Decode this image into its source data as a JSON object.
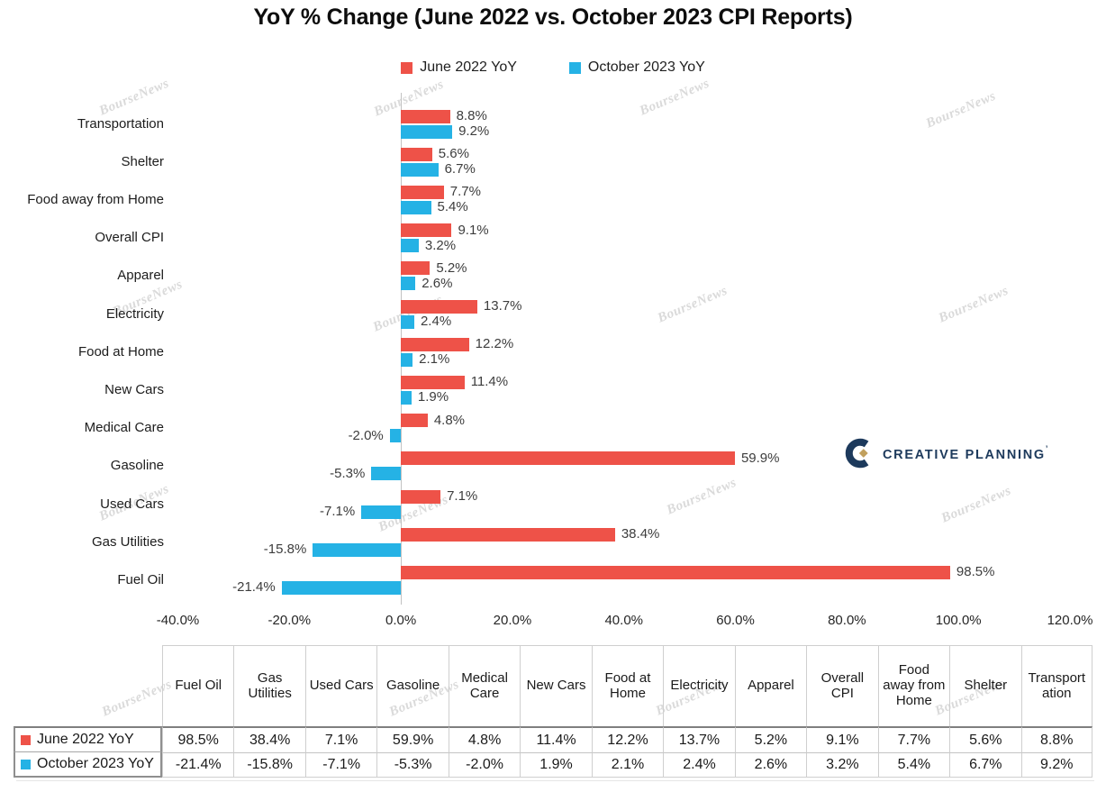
{
  "title": "YoY % Change (June 2022 vs. October 2023 CPI Reports)",
  "legend": {
    "items": [
      {
        "label": "June 2022 YoY",
        "color": "#EE5248"
      },
      {
        "label": "October 2023 YoY",
        "color": "#25B2E5"
      }
    ]
  },
  "watermark": {
    "text": "BourseNews"
  },
  "logo": {
    "name": "CREATIVE PLANNING",
    "mark": "’",
    "navy": "#1d3a5c",
    "gold": "#c1a05e"
  },
  "chart_data": {
    "type": "bar",
    "orientation": "horizontal",
    "title": "YoY % Change (June 2022 vs. October 2023 CPI Reports)",
    "categories": [
      "Transportation",
      "Shelter",
      "Food away from Home",
      "Overall CPI",
      "Apparel",
      "Electricity",
      "Food at Home",
      "New Cars",
      "Medical Care",
      "Gasoline",
      "Used Cars",
      "Gas Utilities",
      "Fuel Oil"
    ],
    "series": [
      {
        "name": "June 2022 YoY",
        "color": "#EE5248",
        "values": [
          8.8,
          5.6,
          7.7,
          9.1,
          5.2,
          13.7,
          12.2,
          11.4,
          4.8,
          59.9,
          7.1,
          38.4,
          98.5
        ]
      },
      {
        "name": "October 2023 YoY",
        "color": "#25B2E5",
        "values": [
          9.2,
          6.7,
          5.4,
          3.2,
          2.6,
          2.4,
          2.1,
          1.9,
          -2.0,
          -5.3,
          -7.1,
          -15.8,
          -21.4
        ]
      }
    ],
    "xlim": [
      -40,
      120
    ],
    "xticks": [
      "-40.0%",
      "-20.0%",
      "0.0%",
      "20.0%",
      "40.0%",
      "60.0%",
      "80.0%",
      "100.0%",
      "120.0%"
    ],
    "data_labels": true,
    "grid": false,
    "legend_position": "top"
  },
  "table": {
    "columns": [
      "Fuel Oil",
      "Gas Utilities",
      "Used Cars",
      "Gasoline",
      "Medical Care",
      "New Cars",
      "Food at Home",
      "Electricity",
      "Apparel",
      "Overall CPI",
      "Food away from Home",
      "Shelter",
      "Transportation"
    ],
    "rows": [
      {
        "label": "June 2022 YoY",
        "swatch": "#EE5248",
        "values": [
          "98.5%",
          "38.4%",
          "7.1%",
          "59.9%",
          "4.8%",
          "11.4%",
          "12.2%",
          "13.7%",
          "5.2%",
          "9.1%",
          "7.7%",
          "5.6%",
          "8.8%"
        ]
      },
      {
        "label": "October 2023 YoY",
        "swatch": "#25B2E5",
        "values": [
          "-21.4%",
          "-15.8%",
          "-7.1%",
          "-5.3%",
          "-2.0%",
          "1.9%",
          "2.1%",
          "2.4%",
          "2.6%",
          "3.2%",
          "5.4%",
          "6.7%",
          "9.2%"
        ]
      }
    ]
  }
}
